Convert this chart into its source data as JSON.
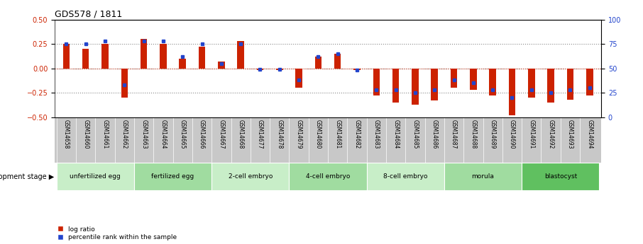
{
  "title": "GDS578 / 1811",
  "samples": [
    "GSM14658",
    "GSM14660",
    "GSM14661",
    "GSM14662",
    "GSM14663",
    "GSM14664",
    "GSM14665",
    "GSM14666",
    "GSM14667",
    "GSM14668",
    "GSM14677",
    "GSM14678",
    "GSM14679",
    "GSM14680",
    "GSM14681",
    "GSM14682",
    "GSM14683",
    "GSM14684",
    "GSM14685",
    "GSM14686",
    "GSM14687",
    "GSM14688",
    "GSM14689",
    "GSM14690",
    "GSM14691",
    "GSM14692",
    "GSM14693",
    "GSM14694"
  ],
  "log_ratio": [
    0.25,
    0.2,
    0.25,
    -0.3,
    0.3,
    0.25,
    0.1,
    0.22,
    0.07,
    0.28,
    -0.02,
    -0.02,
    -0.2,
    0.12,
    0.15,
    -0.02,
    -0.28,
    -0.35,
    -0.37,
    -0.33,
    -0.2,
    -0.22,
    -0.28,
    -0.48,
    -0.3,
    -0.35,
    -0.32,
    -0.28
  ],
  "percentile": [
    75,
    75,
    78,
    33,
    78,
    78,
    62,
    75,
    55,
    75,
    49,
    49,
    38,
    62,
    65,
    48,
    28,
    28,
    25,
    28,
    38,
    35,
    28,
    20,
    28,
    25,
    28,
    30
  ],
  "stages": [
    {
      "label": "unfertilized egg",
      "start": 0,
      "end": 4,
      "color": "#c8eec8"
    },
    {
      "label": "fertilized egg",
      "start": 4,
      "end": 8,
      "color": "#a0dca0"
    },
    {
      "label": "2-cell embryo",
      "start": 8,
      "end": 12,
      "color": "#c8eec8"
    },
    {
      "label": "4-cell embryo",
      "start": 12,
      "end": 16,
      "color": "#a0dca0"
    },
    {
      "label": "8-cell embryo",
      "start": 16,
      "end": 20,
      "color": "#c8eec8"
    },
    {
      "label": "morula",
      "start": 20,
      "end": 24,
      "color": "#a0dca0"
    },
    {
      "label": "blastocyst",
      "start": 24,
      "end": 28,
      "color": "#60c060"
    }
  ],
  "ylim": [
    -0.5,
    0.5
  ],
  "yticks": [
    -0.5,
    -0.25,
    0.0,
    0.25,
    0.5
  ],
  "y2ticks": [
    0,
    25,
    50,
    75,
    100
  ],
  "bar_color": "#cc2200",
  "dot_color": "#2244cc",
  "dotted_lines": [
    -0.25,
    0.0,
    0.25
  ],
  "background_color": "#ffffff",
  "xtick_bg_color": "#c8c8c8",
  "legend_log_ratio": "log ratio",
  "legend_percentile": "percentile rank within the sample",
  "bar_width": 0.35
}
